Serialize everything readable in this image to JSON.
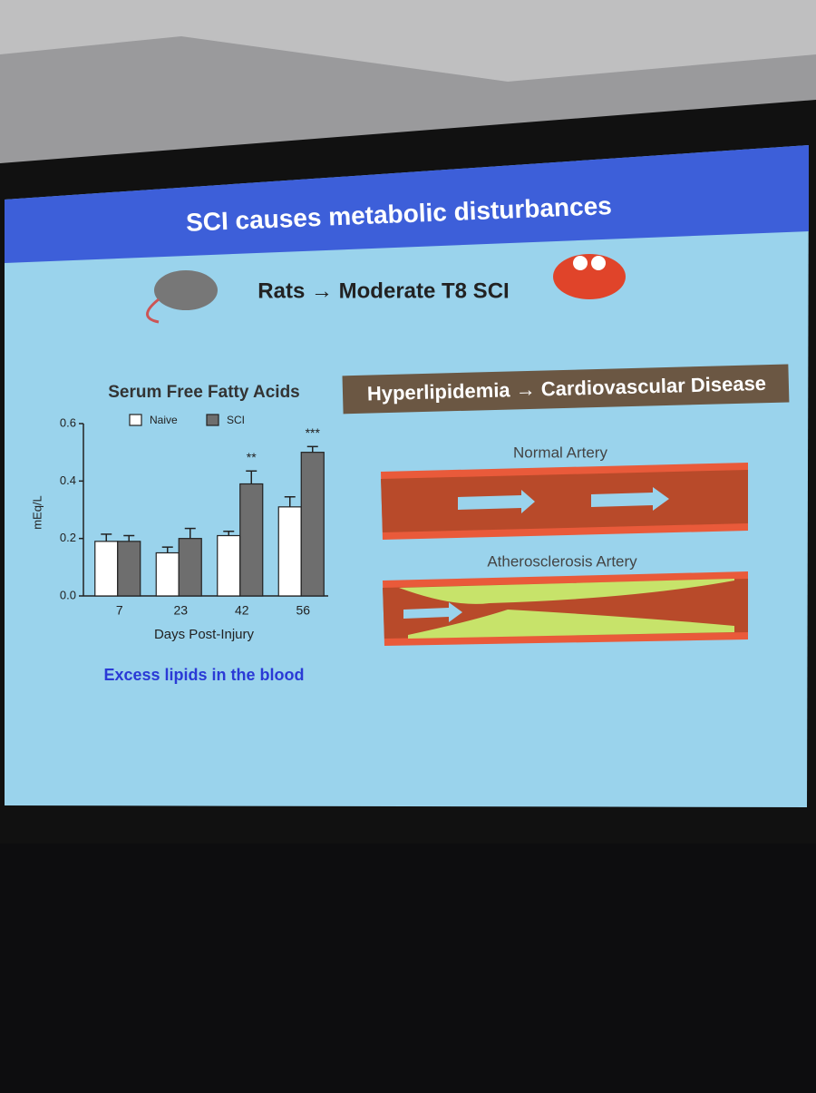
{
  "slide_title": "SCI causes metabolic disturbances",
  "subtitle": "Rats → Moderate T8 SCI",
  "banner": "Hyperlipidemia → Cardiovascular Disease",
  "normal_artery": "Normal Artery",
  "atherosclerosis_artery": "Atherosclerosis Artery",
  "caption": "Excess lipids in the blood",
  "chart_data": {
    "type": "bar",
    "title": "Serum Free Fatty Acids",
    "y_label": "mEq/L",
    "x_label": "Days Post-Injury",
    "categories": [
      "7",
      "23",
      "42",
      "56"
    ],
    "series": [
      {
        "name": "Naive",
        "color": "#ffffff",
        "values": [
          0.19,
          0.15,
          0.21,
          0.31
        ],
        "errors": [
          0.025,
          0.02,
          0.015,
          0.035
        ]
      },
      {
        "name": "SCI",
        "color": "#6e6e6e",
        "values": [
          0.19,
          0.2,
          0.39,
          0.5
        ],
        "errors": [
          0.02,
          0.035,
          0.045,
          0.02
        ],
        "labels": [
          null,
          null,
          "**",
          "***"
        ]
      }
    ],
    "ylim": [
      0,
      0.6
    ],
    "yticks": [
      {
        "value": 0,
        "label": "0.0"
      },
      0.2,
      0.4,
      0.6
    ]
  }
}
